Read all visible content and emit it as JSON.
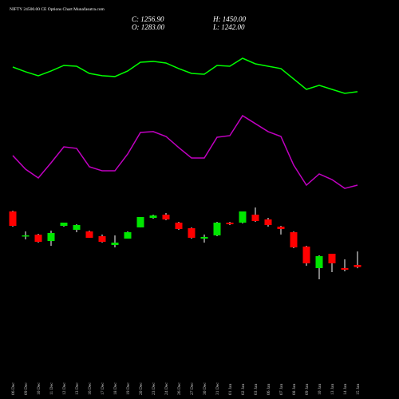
{
  "chart_data": {
    "type": "candlestick",
    "title": "NIFTY 24500.00 CE Options Chart Munafasutra.com",
    "info": [
      "C: 1256.90",
      "H: 1450.00",
      "O: 1283.00",
      "L: 1242.00"
    ],
    "categories": [
      "06 Dec",
      "09 Dec",
      "10 Dec",
      "11 Dec",
      "12 Dec",
      "13 Dec",
      "16 Dec",
      "17 Dec",
      "18 Dec",
      "19 Dec",
      "20 Dec",
      "23 Dec",
      "24 Dec",
      "26 Dec",
      "27 Dec",
      "30 Dec",
      "31 Dec",
      "01 Jan",
      "02 Jan",
      "03 Jan",
      "06 Jan",
      "07 Jan",
      "08 Jan",
      "09 Jan",
      "10 Jan",
      "13 Jan",
      "14 Jan",
      "15 Jan"
    ],
    "open": [
      1947,
      1640,
      1659,
      1580,
      1768,
      1719,
      1699,
      1640,
      1531,
      1610,
      1749,
      1867,
      1907,
      1808,
      1739,
      1610,
      1650,
      1808,
      1808,
      1907,
      1848,
      1758,
      1689,
      1511,
      1244,
      1422,
      1244,
      1283
    ],
    "high": [
      1956,
      1699,
      1669,
      1709,
      1808,
      1788,
      1709,
      1660,
      1650,
      1699,
      1877,
      1907,
      1927,
      1818,
      1749,
      1660,
      1818,
      1818,
      1947,
      1996,
      1867,
      1768,
      1699,
      1521,
      1402,
      1422,
      1353,
      1450
    ],
    "low": [
      1758,
      1600,
      1560,
      1521,
      1758,
      1689,
      1620,
      1560,
      1501,
      1610,
      1749,
      1857,
      1838,
      1719,
      1610,
      1560,
      1640,
      1778,
      1798,
      1818,
      1758,
      1660,
      1491,
      1273,
      1105,
      1194,
      1204,
      1242
    ],
    "close": [
      1768,
      1650,
      1570,
      1679,
      1808,
      1778,
      1620,
      1570,
      1560,
      1689,
      1877,
      1897,
      1848,
      1729,
      1620,
      1630,
      1808,
      1788,
      1947,
      1828,
      1778,
      1729,
      1501,
      1303,
      1392,
      1303,
      1224,
      1256.9
    ],
    "up_color": "#00e600",
    "down_color": "#ff0000",
    "series": [
      {
        "color": "#00ff00",
        "values": [
          3738,
          3679,
          3630,
          3689,
          3758,
          3748,
          3659,
          3630,
          3620,
          3689,
          3798,
          3808,
          3788,
          3719,
          3659,
          3649,
          3758,
          3748,
          3847,
          3778,
          3748,
          3719,
          3590,
          3461,
          3511,
          3461,
          3412,
          3432
        ]
      },
      {
        "color": "#c000c0",
        "values": [
          2640,
          2471,
          2362,
          2550,
          2748,
          2729,
          2501,
          2451,
          2451,
          2659,
          2927,
          2937,
          2877,
          2739,
          2610,
          2610,
          2867,
          2887,
          3135,
          3036,
          2937,
          2877,
          2521,
          2273,
          2412,
          2342,
          2233,
          2273
        ]
      }
    ]
  }
}
